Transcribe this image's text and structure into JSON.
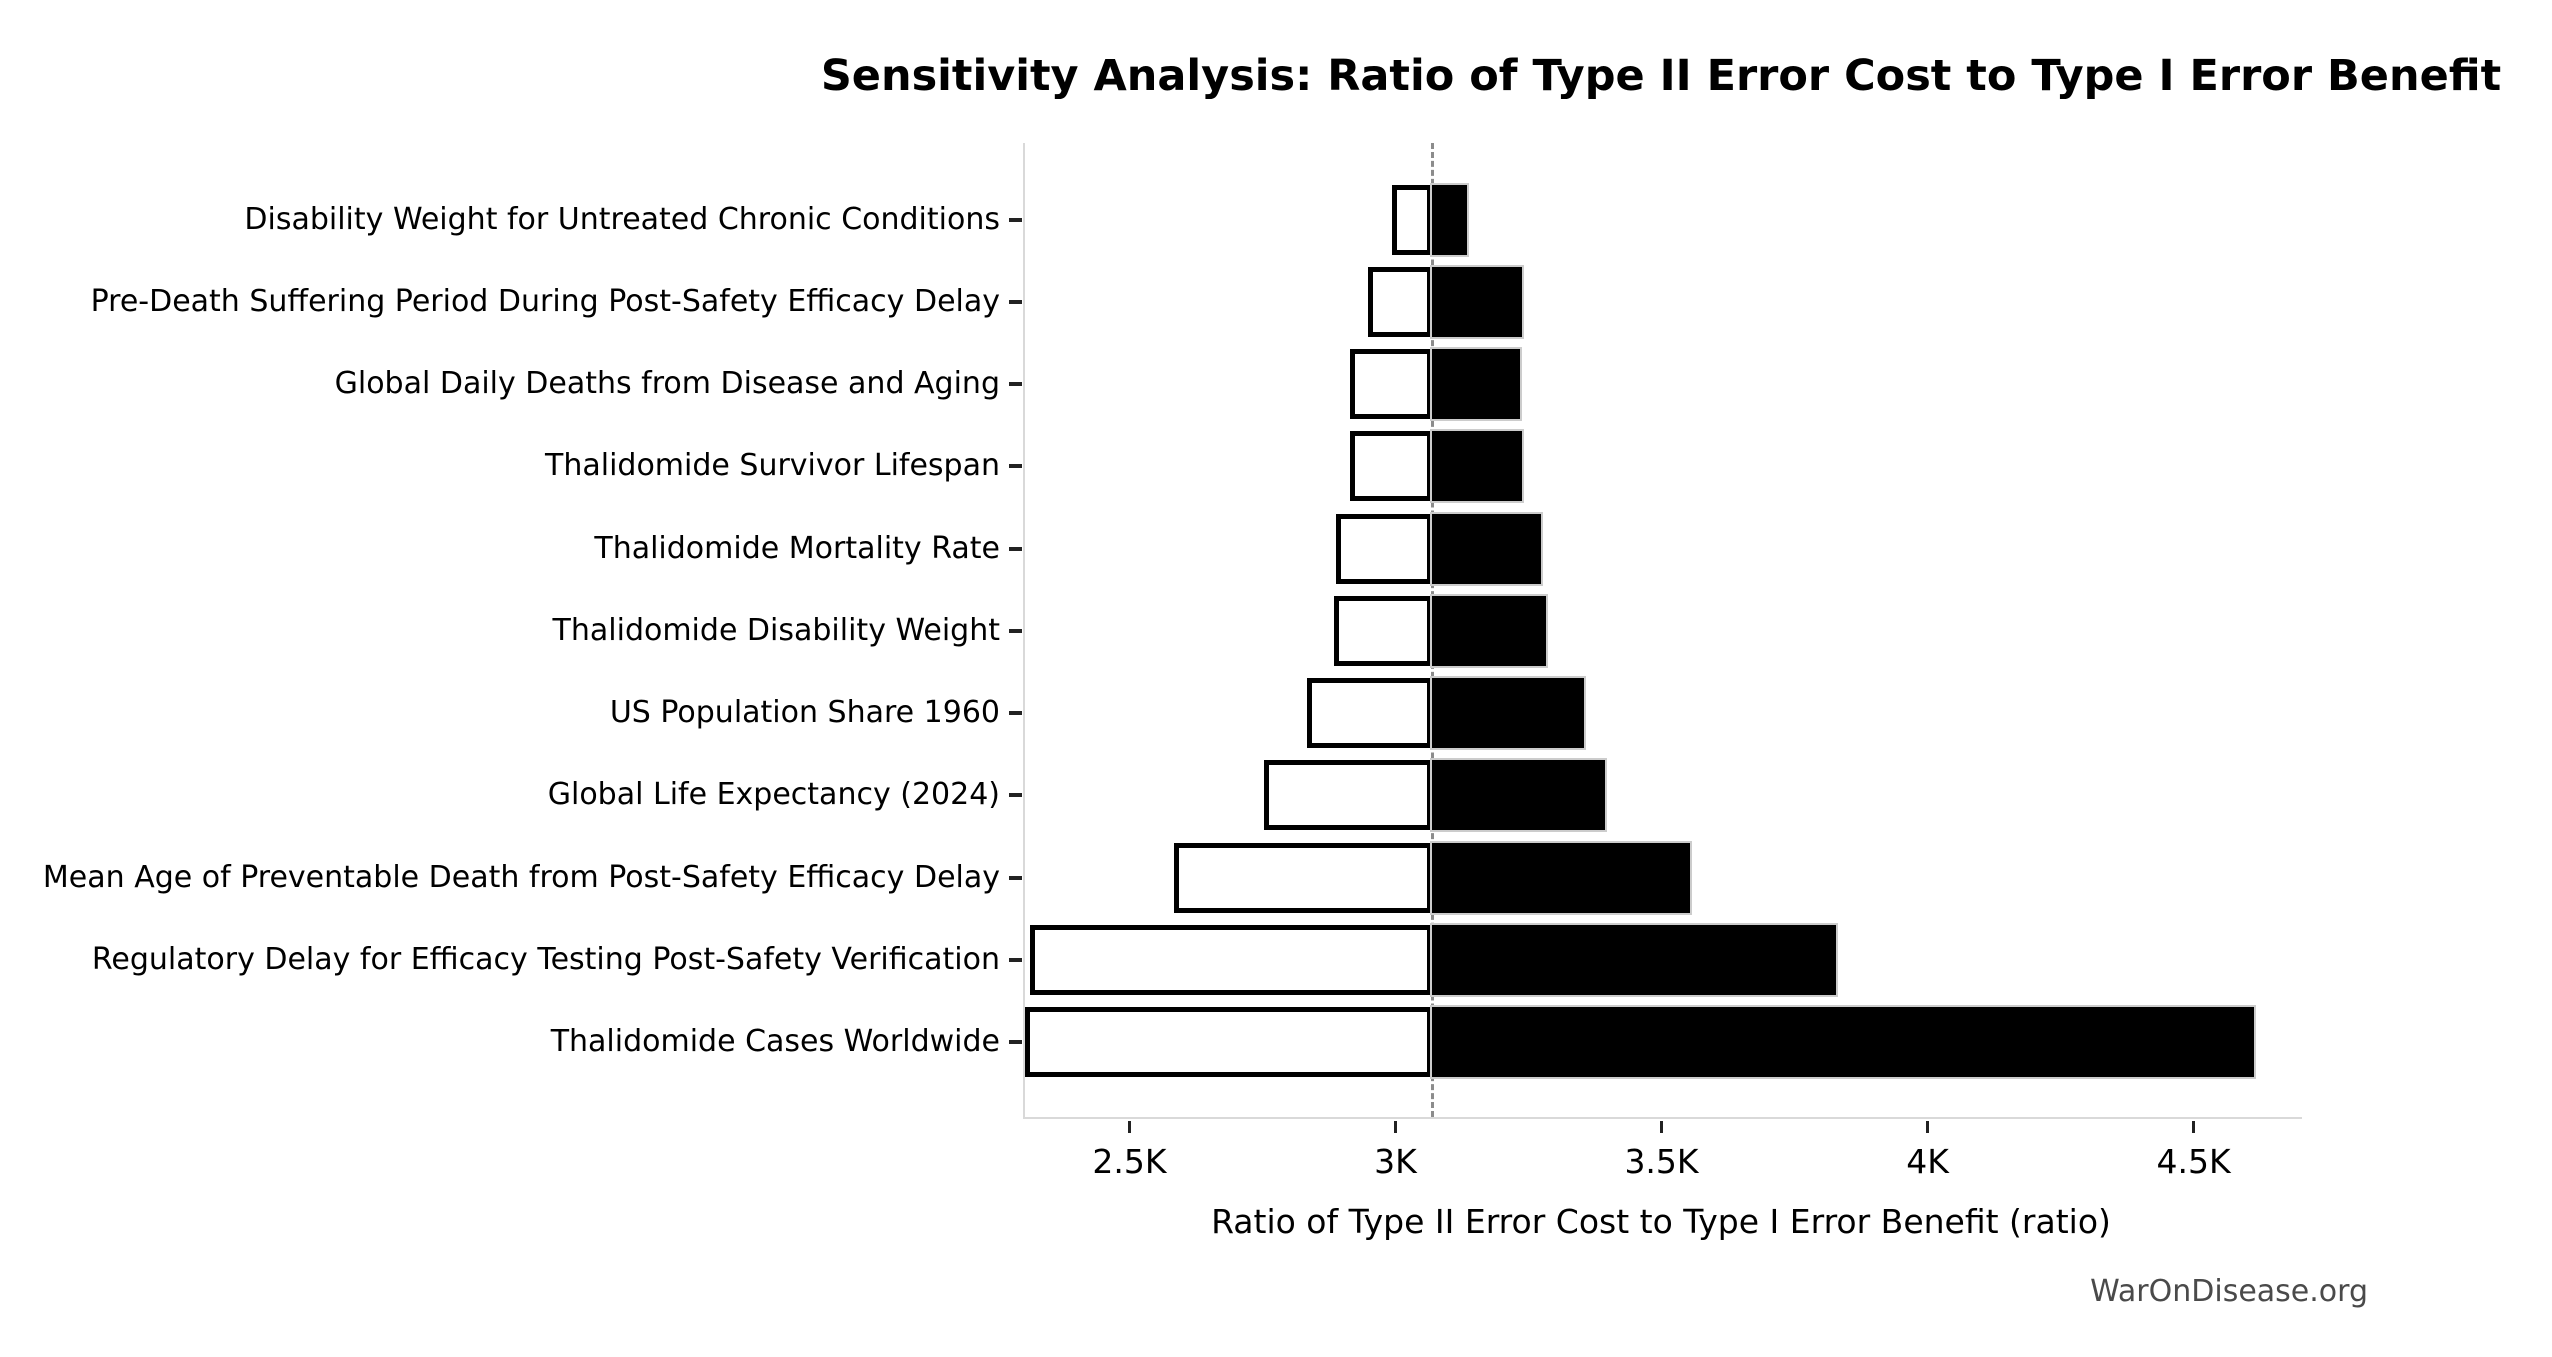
{
  "title": "Sensitivity Analysis: Ratio of Type II Error Cost to Type I Error Benefit",
  "watermark": "WarOnDisease.org",
  "colors": {
    "background": "#ffffff",
    "low_bar_fill": "#ffffff",
    "low_bar_edge": "#000000",
    "high_bar_fill": "#000000",
    "baseline_dash": "#8c8c8c",
    "axis_spine": "#d9d9d9",
    "tick_mark": "#222222",
    "watermark_text": "#4a4a4a"
  },
  "chart_data": {
    "type": "bar",
    "subtype": "tornado",
    "orientation": "horizontal",
    "title": "Sensitivity Analysis: Ratio of Type II Error Cost to Type I Error Benefit",
    "xlabel": "Ratio of Type II Error Cost to Type I Error Benefit (ratio)",
    "ylabel": "",
    "baseline": 3065,
    "xlim": [
      2300,
      4700
    ],
    "grid": false,
    "legend": false,
    "xticks": {
      "values": [
        2500,
        3000,
        3500,
        4000,
        4500
      ],
      "labels": [
        "2.5K",
        "3K",
        "3.5K",
        "4K",
        "4.5K"
      ]
    },
    "rows": [
      {
        "label": "Disability Weight for Untreated Chronic Conditions",
        "low": 2990,
        "high": 3130
      },
      {
        "label": "Pre-Death Suffering Period During Post-Safety Efficacy Delay",
        "low": 2945,
        "high": 3235
      },
      {
        "label": "Global Daily Deaths from Disease and Aging",
        "low": 2910,
        "high": 3230
      },
      {
        "label": "Thalidomide Survivor Lifespan",
        "low": 2910,
        "high": 3235
      },
      {
        "label": "Thalidomide Mortality Rate",
        "low": 2885,
        "high": 3270
      },
      {
        "label": "Thalidomide Disability Weight",
        "low": 2880,
        "high": 3280
      },
      {
        "label": "US Population Share 1960",
        "low": 2830,
        "high": 3350
      },
      {
        "label": "Global Life Expectancy (2024)",
        "low": 2750,
        "high": 3390
      },
      {
        "label": "Mean Age of Preventable Death from Post-Safety Efficacy Delay",
        "low": 2580,
        "high": 3550
      },
      {
        "label": "Regulatory Delay for Efficacy Testing Post-Safety Verification",
        "low": 2310,
        "high": 3825
      },
      {
        "label": "Thalidomide Cases Worldwide",
        "low": 2300,
        "high": 4610
      }
    ]
  }
}
